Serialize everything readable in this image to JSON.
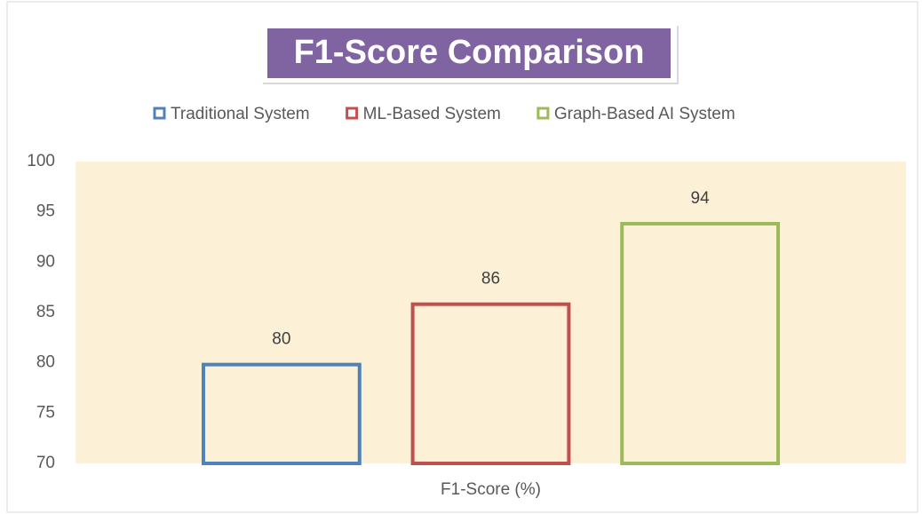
{
  "chart_data": {
    "type": "bar",
    "title": "F1-Score Comparison",
    "categories": [
      "F1-Score (%)"
    ],
    "series": [
      {
        "name": "Traditional System",
        "color": "#4f81bd",
        "values": [
          80
        ]
      },
      {
        "name": "ML-Based System",
        "color": "#c0504d",
        "values": [
          86
        ]
      },
      {
        "name": "Graph-Based AI System",
        "color": "#9bbb59",
        "values": [
          94
        ]
      }
    ],
    "ylim": [
      70,
      100
    ],
    "yticks": [
      70,
      75,
      80,
      85,
      90,
      95,
      100
    ],
    "legend": "top",
    "grid": false
  }
}
